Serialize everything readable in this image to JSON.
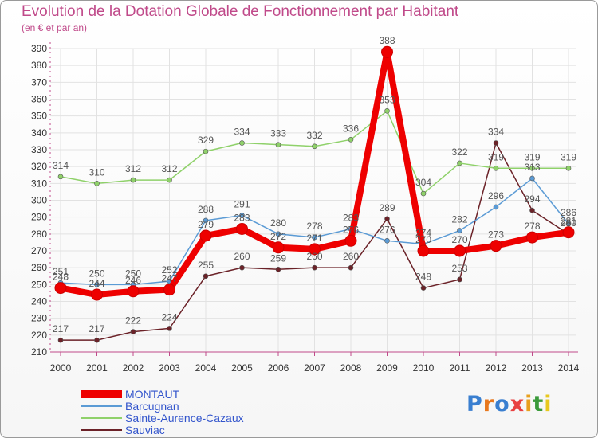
{
  "title": "Evolution de la Dotation Globale de Fonctionnement par Habitant",
  "subtitle": "(en € et par an)",
  "logo": "Proxiti",
  "colors": {
    "title": "#c04a8a",
    "axis": "#c04a8a",
    "grid": "#e2e2e2",
    "tick_label": "#333333",
    "data_label": "#555555"
  },
  "chart_data": {
    "type": "line",
    "title": "Evolution de la Dotation Globale de Fonctionnement par Habitant",
    "subtitle": "(en € et par an)",
    "xlabel": "",
    "ylabel": "",
    "ylim": [
      210,
      390
    ],
    "yticks": [
      210,
      220,
      230,
      240,
      250,
      260,
      270,
      280,
      290,
      300,
      310,
      320,
      330,
      340,
      350,
      360,
      370,
      380,
      390
    ],
    "x": [
      "2000",
      "2001",
      "2002",
      "2003",
      "2004",
      "2005",
      "2006",
      "2007",
      "2008",
      "2009",
      "2010",
      "2011",
      "2012",
      "2013",
      "2014"
    ],
    "grid": true,
    "legend_position": "bottom-left",
    "series": [
      {
        "name": "MONTAUT",
        "color": "#ee0000",
        "values": [
          248,
          244,
          246,
          247,
          279,
          283,
          272,
          271,
          276,
          388,
          270,
          270,
          273,
          278,
          281
        ]
      },
      {
        "name": "Barcugnan",
        "color": "#5b9bd5",
        "values": [
          251,
          250,
          250,
          252,
          288,
          291,
          280,
          278,
          283,
          276,
          274,
          282,
          296,
          313,
          286
        ]
      },
      {
        "name": "Sainte-Aurence-Cazaux",
        "color": "#8fd16a",
        "values": [
          314,
          310,
          312,
          312,
          329,
          334,
          333,
          332,
          336,
          353,
          304,
          322,
          319,
          319,
          319
        ]
      },
      {
        "name": "Sauviac",
        "color": "#6b2228",
        "values": [
          217,
          217,
          222,
          224,
          255,
          260,
          259,
          260,
          260,
          289,
          248,
          253,
          334,
          294,
          280
        ]
      }
    ]
  }
}
